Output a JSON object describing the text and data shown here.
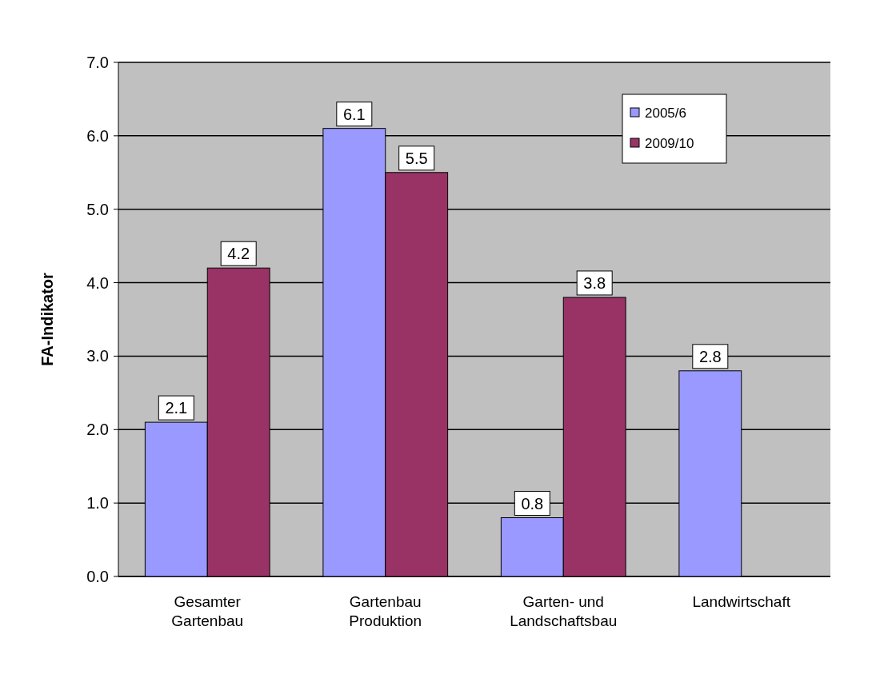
{
  "chart_data": {
    "type": "bar",
    "ylabel": "FA-Indikator",
    "categories": [
      "Gesamter Gartenbau",
      "Gartenbau Produktion",
      "Garten- und Landschaftsbau",
      "Landwirtschaft"
    ],
    "series": [
      {
        "name": "2005/6",
        "color": "#9999ff",
        "values": [
          2.1,
          6.1,
          0.8,
          2.8
        ]
      },
      {
        "name": "2009/10",
        "color": "#993366",
        "values": [
          4.2,
          5.5,
          3.8,
          null
        ]
      }
    ],
    "ylim": [
      0,
      7
    ],
    "yticks": [
      {
        "value": 0,
        "label": "0.0"
      },
      {
        "value": 1,
        "label": "1.0"
      },
      {
        "value": 2,
        "label": "2.0"
      },
      {
        "value": 3,
        "label": "3.0"
      },
      {
        "value": 4,
        "label": "4.0"
      },
      {
        "value": 5,
        "label": "5.0"
      },
      {
        "value": 6,
        "label": "6.0"
      },
      {
        "value": 7,
        "label": "7.0"
      }
    ],
    "grid": "y",
    "legend": "top right",
    "data_labels": true
  }
}
